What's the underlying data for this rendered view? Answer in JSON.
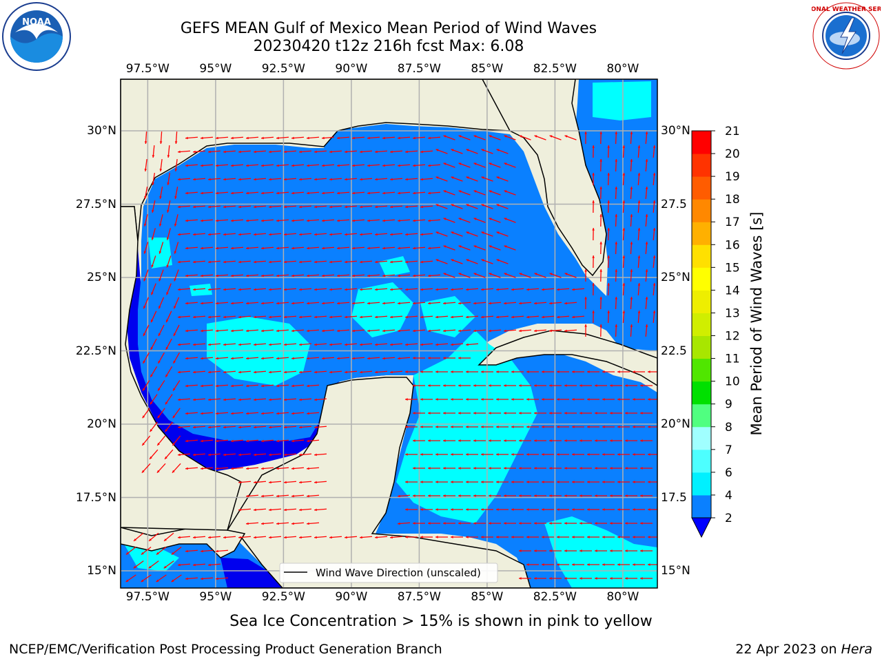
{
  "title": {
    "line1": "GEFS MEAN Gulf of Mexico Mean Period of Wind Waves",
    "line2": "20230420 t12z 216h fcst   Max: 6.08"
  },
  "logos": {
    "left": "noaa-logo",
    "right": "nws-logo",
    "left_text": "NOAA",
    "right_text": "NATIONAL WEATHER SERVICE"
  },
  "axes": {
    "lon_labels": [
      "97.5°W",
      "95°W",
      "92.5°W",
      "90°W",
      "87.5°W",
      "85°W",
      "82.5°W",
      "80°W"
    ],
    "lat_labels_left": [
      "30°N",
      "27.5°N",
      "25°N",
      "22.5°N",
      "20°N",
      "17.5°N",
      "15°N"
    ],
    "lat_labels_right": [
      "30°N",
      "27.5",
      "25°N",
      "22.5",
      "20°N",
      "17.5",
      "15°N"
    ]
  },
  "legend": {
    "label": "Wind Wave Direction (unscaled)"
  },
  "colorbar": {
    "label": "Mean Period of Wind Waves [s]",
    "ticks": [
      "2",
      "4",
      "6",
      "7",
      "8",
      "9",
      "10",
      "11",
      "12",
      "13",
      "14",
      "15",
      "16",
      "17",
      "18",
      "19",
      "20",
      "21"
    ],
    "colors": [
      "#0a80ff",
      "#00f0ff",
      "#4dffff",
      "#a0ffff",
      "#50ff80",
      "#00e000",
      "#50e600",
      "#a8e600",
      "#d0ee00",
      "#eeee00",
      "#ffff00",
      "#ffe000",
      "#ffb000",
      "#ff8800",
      "#ff5c00",
      "#ff3300",
      "#ff0000"
    ],
    "extend_color": "#0000ff"
  },
  "colors": {
    "land": "#efefdc",
    "sea_low": "#0000ee",
    "sea_main": "#0a80ff",
    "sea_cyan": "#00ffff",
    "arrow": "#ff0000",
    "grid": "#b0b0b0"
  },
  "footer": {
    "note": "Sea Ice Concentration > 15% is shown in pink to yellow",
    "credit": "NCEP/EMC/Verification Post Processing Product Generation Branch",
    "date": "22 Apr 2023 on ",
    "host": "Hera"
  }
}
